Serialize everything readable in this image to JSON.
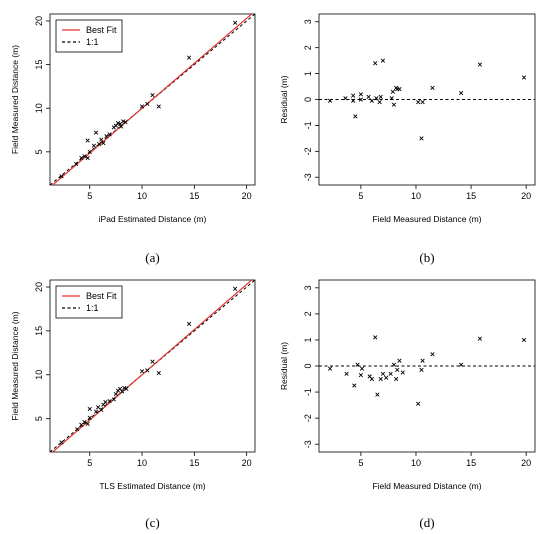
{
  "colors": {
    "best_fit": "#e0322c",
    "one_to_one": "#000000",
    "points": "#000000"
  },
  "chart_data": [
    {
      "id": "a",
      "type": "scatter",
      "panel_label": "(a)",
      "xlabel": "iPad Estimated Distance (m)",
      "ylabel": "Field Measured Distance (m)",
      "xlim": [
        1.2,
        20.8
      ],
      "ylim": [
        1.2,
        20.8
      ],
      "xticks": [
        5,
        10,
        15,
        20
      ],
      "yticks": [
        5,
        10,
        15,
        20
      ],
      "legend": {
        "placement": "top-left",
        "entries": [
          "Best Fit",
          "1:1"
        ]
      },
      "best_fit": {
        "slope": 1.03,
        "intercept": -0.3
      },
      "one_to_one": true,
      "points": [
        [
          2.3,
          2.2
        ],
        [
          3.7,
          3.6
        ],
        [
          4.2,
          4.3
        ],
        [
          4.5,
          4.5
        ],
        [
          4.8,
          4.3
        ],
        [
          5.0,
          5.0
        ],
        [
          4.8,
          6.3
        ],
        [
          5.4,
          5.7
        ],
        [
          5.6,
          7.2
        ],
        [
          5.9,
          5.9
        ],
        [
          6.1,
          6.4
        ],
        [
          6.3,
          6.0
        ],
        [
          6.6,
          6.8
        ],
        [
          6.9,
          7.0
        ],
        [
          7.3,
          7.8
        ],
        [
          7.5,
          8.0
        ],
        [
          7.7,
          8.3
        ],
        [
          7.9,
          8.2
        ],
        [
          8.0,
          7.9
        ],
        [
          8.2,
          8.5
        ],
        [
          8.4,
          8.4
        ],
        [
          10.0,
          10.2
        ],
        [
          10.5,
          10.5
        ],
        [
          11.0,
          11.5
        ],
        [
          11.6,
          10.2
        ],
        [
          14.5,
          15.8
        ],
        [
          18.9,
          19.8
        ]
      ]
    },
    {
      "id": "b",
      "type": "scatter",
      "panel_label": "(b)",
      "xlabel": "Field Measured Distance (m)",
      "ylabel": "Residual (m)",
      "xlim": [
        1.2,
        20.8
      ],
      "ylim": [
        -3.3,
        3.3
      ],
      "xticks": [
        5,
        10,
        15,
        20
      ],
      "yticks": [
        -3,
        -2,
        -1,
        0,
        1,
        2,
        3
      ],
      "zero_line": true,
      "points": [
        [
          2.2,
          -0.05
        ],
        [
          3.6,
          0.05
        ],
        [
          4.3,
          0.15
        ],
        [
          4.5,
          -0.65
        ],
        [
          4.3,
          -0.05
        ],
        [
          5.0,
          0.0
        ],
        [
          5.0,
          0.2
        ],
        [
          5.7,
          0.1
        ],
        [
          6.0,
          -0.05
        ],
        [
          6.3,
          1.4
        ],
        [
          6.4,
          0.05
        ],
        [
          6.8,
          0.1
        ],
        [
          7.0,
          1.5
        ],
        [
          6.7,
          -0.1
        ],
        [
          7.8,
          0.05
        ],
        [
          8.0,
          -0.2
        ],
        [
          8.2,
          0.45
        ],
        [
          8.3,
          0.4
        ],
        [
          8.5,
          0.4
        ],
        [
          7.9,
          0.3
        ],
        [
          10.2,
          -0.1
        ],
        [
          10.5,
          -1.5
        ],
        [
          10.6,
          -0.1
        ],
        [
          11.5,
          0.45
        ],
        [
          14.1,
          0.25
        ],
        [
          15.8,
          1.35
        ],
        [
          19.8,
          0.85
        ]
      ]
    },
    {
      "id": "c",
      "type": "scatter",
      "panel_label": "(c)",
      "xlabel": "TLS Estimated Distance (m)",
      "ylabel": "Field Measured Distance (m)",
      "xlim": [
        1.2,
        20.8
      ],
      "ylim": [
        1.2,
        20.8
      ],
      "xticks": [
        5,
        10,
        15,
        20
      ],
      "yticks": [
        5,
        10,
        15,
        20
      ],
      "legend": {
        "placement": "top-left",
        "entries": [
          "Best Fit",
          "1:1"
        ]
      },
      "best_fit": {
        "slope": 1.03,
        "intercept": -0.3
      },
      "one_to_one": true,
      "points": [
        [
          2.3,
          2.3
        ],
        [
          3.8,
          3.8
        ],
        [
          4.2,
          4.3
        ],
        [
          4.5,
          4.6
        ],
        [
          4.8,
          4.4
        ],
        [
          5.0,
          5.1
        ],
        [
          5.0,
          6.1
        ],
        [
          5.6,
          5.8
        ],
        [
          5.8,
          6.3
        ],
        [
          6.1,
          6.0
        ],
        [
          6.3,
          6.6
        ],
        [
          6.5,
          6.9
        ],
        [
          6.9,
          7.0
        ],
        [
          7.3,
          7.2
        ],
        [
          7.5,
          7.8
        ],
        [
          7.7,
          8.2
        ],
        [
          7.9,
          8.4
        ],
        [
          8.1,
          8.1
        ],
        [
          8.3,
          8.5
        ],
        [
          8.5,
          8.4
        ],
        [
          10.0,
          10.4
        ],
        [
          10.5,
          10.5
        ],
        [
          11.0,
          11.5
        ],
        [
          11.6,
          10.2
        ],
        [
          14.5,
          15.8
        ],
        [
          18.9,
          19.8
        ]
      ]
    },
    {
      "id": "d",
      "type": "scatter",
      "panel_label": "(d)",
      "xlabel": "Field Measured Distance (m)",
      "ylabel": "Residual (m)",
      "xlim": [
        1.2,
        20.8
      ],
      "ylim": [
        -3.3,
        3.3
      ],
      "xticks": [
        5,
        10,
        15,
        20
      ],
      "yticks": [
        -3,
        -2,
        -1,
        0,
        1,
        2,
        3
      ],
      "zero_line": true,
      "points": [
        [
          2.2,
          -0.1
        ],
        [
          3.7,
          -0.3
        ],
        [
          4.4,
          -0.75
        ],
        [
          4.7,
          0.05
        ],
        [
          5.0,
          -0.35
        ],
        [
          5.1,
          -0.1
        ],
        [
          5.8,
          -0.4
        ],
        [
          6.0,
          -0.5
        ],
        [
          6.3,
          1.1
        ],
        [
          6.5,
          -1.1
        ],
        [
          6.8,
          -0.5
        ],
        [
          7.0,
          -0.3
        ],
        [
          7.3,
          -0.45
        ],
        [
          7.7,
          -0.3
        ],
        [
          8.0,
          0.05
        ],
        [
          8.2,
          -0.5
        ],
        [
          8.3,
          -0.15
        ],
        [
          8.5,
          0.2
        ],
        [
          8.8,
          -0.25
        ],
        [
          10.2,
          -1.45
        ],
        [
          10.5,
          -0.15
        ],
        [
          10.6,
          0.2
        ],
        [
          11.5,
          0.45
        ],
        [
          14.1,
          0.05
        ],
        [
          15.8,
          1.05
        ],
        [
          19.8,
          1.0
        ]
      ]
    }
  ]
}
